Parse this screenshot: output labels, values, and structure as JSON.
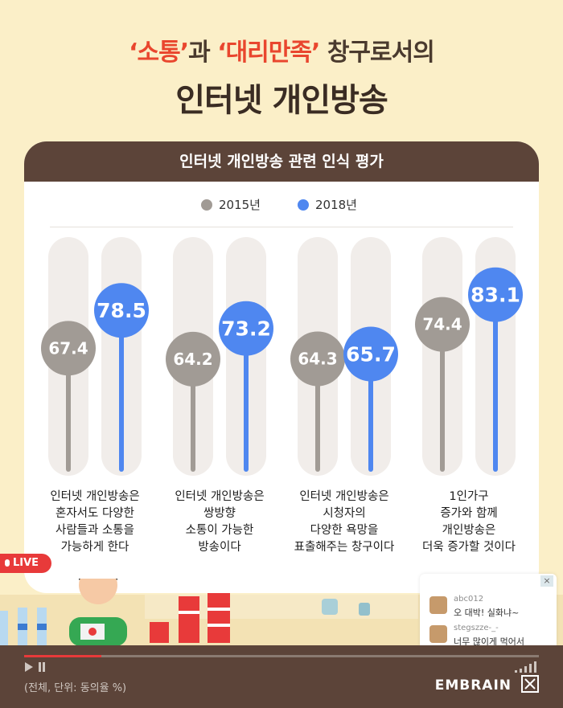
{
  "title": {
    "line1_hl1": "‘소통’",
    "line1_mid": "과 ",
    "line1_hl2": "‘대리만족’",
    "line1_end": " 창구로서의",
    "line2": "인터넷 개인방송"
  },
  "colors": {
    "series_2015": "#A19B95",
    "series_2018": "#4F87F0",
    "track": "#F1EDEA",
    "header_bg": "#5C4439",
    "highlight": "#E9462E"
  },
  "chart_data": {
    "type": "lollipop",
    "title": "인터넷 개인방송 관련 인식 평가",
    "ylim": [
      0,
      100
    ],
    "legend_position": "top-center",
    "categories": [
      "인터넷 개인방송은\n혼자서도 다양한\n사람들과 소통을\n가능하게 한다",
      "인터넷 개인방송은\n쌍방향\n소통이 가능한\n방송이다",
      "인터넷 개인방송은\n시청자의\n다양한 욕망을\n표출해주는 창구이다",
      "1인가구\n증가와 함께\n개인방송은\n더욱 증가할 것이다"
    ],
    "series": [
      {
        "name": "2015년",
        "values": [
          67.4,
          64.2,
          64.3,
          74.4
        ]
      },
      {
        "name": "2018년",
        "values": [
          78.5,
          73.2,
          65.7,
          83.1
        ]
      }
    ]
  },
  "live": {
    "label": "LIVE"
  },
  "chat": {
    "close": "×",
    "messages": [
      {
        "user": "abc012",
        "text": "오 대박! 실화냐~"
      },
      {
        "user": "stegszze-_-",
        "text": "너무 많이게 먹어서"
      }
    ]
  },
  "player": {
    "progress": 0.15,
    "footnote": "(전체, 단위: 동의율 %)",
    "brand": "EMBRAIN"
  }
}
